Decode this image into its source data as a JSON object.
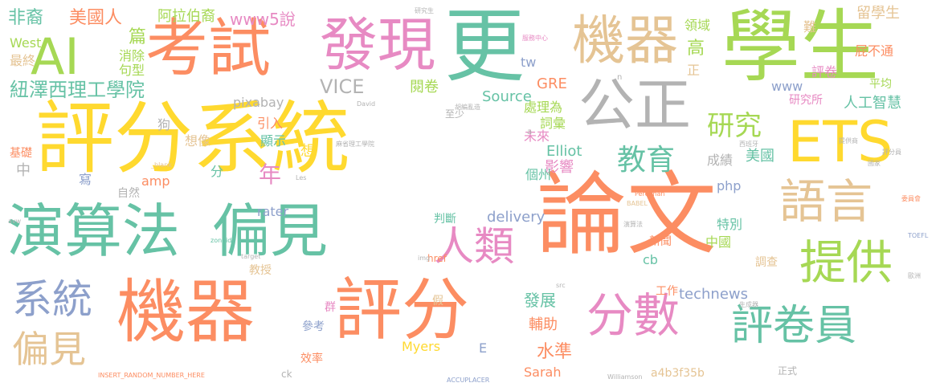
{
  "palette": {
    "green": "#66c2a5",
    "orange": "#fc8d62",
    "blue": "#8da0cb",
    "pink": "#e78ac3",
    "lime": "#a6d854",
    "yellow": "#ffd92f",
    "tan": "#e5c494",
    "gray": "#b3b3b3"
  },
  "words": [
    {
      "text": "評分系統",
      "color": "#ffd92f"
    },
    {
      "text": "論文",
      "color": "#fc8d62"
    },
    {
      "text": "學生",
      "color": "#a6d854"
    },
    {
      "text": "更",
      "color": "#66c2a5"
    },
    {
      "text": "考試",
      "color": "#fc8d62"
    },
    {
      "text": "發現",
      "color": "#e78ac3"
    },
    {
      "text": "機器",
      "color": "#e5c494"
    },
    {
      "text": "AI",
      "color": "#a6d854"
    },
    {
      "text": "公正",
      "color": "#b3b3b3"
    },
    {
      "text": "ETS",
      "color": "#ffd92f"
    },
    {
      "text": "演算法",
      "color": "#66c2a5"
    },
    {
      "text": "偏見",
      "color": "#66c2a5"
    },
    {
      "text": "機器",
      "color": "#fc8d62"
    },
    {
      "text": "評分",
      "color": "#fc8d62"
    },
    {
      "text": "語言",
      "color": "#e5c494"
    },
    {
      "text": "提供",
      "color": "#a6d854"
    },
    {
      "text": "分數",
      "color": "#e78ac3"
    },
    {
      "text": "評卷員",
      "color": "#66c2a5"
    },
    {
      "text": "人類",
      "color": "#e78ac3"
    },
    {
      "text": "系統",
      "color": "#8da0cb"
    },
    {
      "text": "偏見",
      "color": "#e5c494"
    },
    {
      "text": "教育",
      "color": "#66c2a5"
    },
    {
      "text": "研究",
      "color": "#a6d854"
    },
    {
      "text": "紐澤西理工學院",
      "color": "#66c2a5"
    },
    {
      "text": "非裔",
      "color": "#66c2a5"
    },
    {
      "text": "美國人",
      "color": "#fc8d62"
    },
    {
      "text": "阿拉伯裔",
      "color": "#a6d854"
    },
    {
      "text": "www5說",
      "color": "#e78ac3"
    },
    {
      "text": "篇",
      "color": "#a6d854"
    },
    {
      "text": "消除",
      "color": "#a6d854"
    },
    {
      "text": "句型",
      "color": "#a6d854"
    },
    {
      "text": "最終",
      "color": "#e5c494"
    },
    {
      "text": "West",
      "color": "#a6d854"
    },
    {
      "text": "VICE",
      "color": "#b3b3b3"
    },
    {
      "text": "閱卷",
      "color": "#a6d854"
    },
    {
      "text": "Source",
      "color": "#66c2a5"
    },
    {
      "text": "GRE",
      "color": "#fc8d62"
    },
    {
      "text": "tw",
      "color": "#8da0cb"
    },
    {
      "text": "領域",
      "color": "#a6d854"
    },
    {
      "text": "高",
      "color": "#a6d854"
    },
    {
      "text": "正",
      "color": "#e5c494"
    },
    {
      "text": "難",
      "color": "#e5c494"
    },
    {
      "text": "留學生",
      "color": "#e5c494"
    },
    {
      "text": "屁不通",
      "color": "#fc8d62"
    },
    {
      "text": "評卷",
      "color": "#e78ac3"
    },
    {
      "text": "平均",
      "color": "#a6d854"
    },
    {
      "text": "研究所",
      "color": "#e78ac3"
    },
    {
      "text": "人工智慧",
      "color": "#66c2a5"
    },
    {
      "text": "www",
      "color": "#8da0cb"
    },
    {
      "text": "pixabay",
      "color": "#b3b3b3"
    },
    {
      "text": "處理為",
      "color": "#a6d854"
    },
    {
      "text": "詞彙",
      "color": "#a6d854"
    },
    {
      "text": "至少",
      "color": "#b3b3b3"
    },
    {
      "text": "狗",
      "color": "#b3b3b3"
    },
    {
      "text": "引入",
      "color": "#fc8d62"
    },
    {
      "text": "顯示",
      "color": "#66c2a5"
    },
    {
      "text": "未來",
      "color": "#e78ac3"
    },
    {
      "text": "想",
      "color": "#ffd92f"
    },
    {
      "text": "Elliot",
      "color": "#66c2a5"
    },
    {
      "text": "想像",
      "color": "#e5c494"
    },
    {
      "text": "年",
      "color": "#e78ac3"
    },
    {
      "text": "影響",
      "color": "#e78ac3"
    },
    {
      "text": "成績",
      "color": "#b3b3b3"
    },
    {
      "text": "美國",
      "color": "#66c2a5"
    },
    {
      "text": "基礎",
      "color": "#fc8d62"
    },
    {
      "text": "中",
      "color": "#b3b3b3"
    },
    {
      "text": "寫",
      "color": "#8da0cb"
    },
    {
      "text": "分",
      "color": "#66c2a5"
    },
    {
      "text": "amp",
      "color": "#fc8d62"
    },
    {
      "text": "自然",
      "color": "#b3b3b3"
    },
    {
      "text": "個州",
      "color": "#66c2a5"
    },
    {
      "text": "php",
      "color": "#8da0cb"
    },
    {
      "text": "rater",
      "color": "#8da0cb"
    },
    {
      "text": "判斷",
      "color": "#66c2a5"
    },
    {
      "text": "delivery",
      "color": "#8da0cb"
    },
    {
      "text": "特別",
      "color": "#66c2a5"
    },
    {
      "text": "中國",
      "color": "#a6d854"
    },
    {
      "text": "新聞",
      "color": "#fc8d62"
    },
    {
      "text": "cb",
      "color": "#66c2a5"
    },
    {
      "text": "教授",
      "color": "#e5c494"
    },
    {
      "text": "調查",
      "color": "#e5c494"
    },
    {
      "text": "參考",
      "color": "#8da0cb"
    },
    {
      "text": "群",
      "color": "#e78ac3"
    },
    {
      "text": "發展",
      "color": "#66c2a5"
    },
    {
      "text": "輔助",
      "color": "#fc8d62"
    },
    {
      "text": "工作",
      "color": "#fc8d62"
    },
    {
      "text": "technews",
      "color": "#8da0cb"
    },
    {
      "text": "水準",
      "color": "#fc8d62"
    },
    {
      "text": "假",
      "color": "#e5c494"
    },
    {
      "text": "Myers",
      "color": "#ffd92f"
    },
    {
      "text": "E",
      "color": "#8da0cb"
    },
    {
      "text": "Sarah",
      "color": "#fc8d62"
    },
    {
      "text": "效率",
      "color": "#fc8d62"
    },
    {
      "text": "ck",
      "color": "#b3b3b3"
    },
    {
      "text": "a4b3f35b",
      "color": "#e5c494"
    },
    {
      "text": "正式",
      "color": "#b3b3b3"
    },
    {
      "text": "href",
      "color": "#fc8d62"
    },
    {
      "text": "INSERT_RANDOM_NUMBER_HERE",
      "color": "#fc8d62"
    },
    {
      "text": "ACCUPLACER",
      "color": "#8da0cb"
    },
    {
      "text": "Williamson",
      "color": "#b3b3b3"
    },
    {
      "text": "BABEL",
      "color": "#e5c494"
    },
    {
      "text": "Perelman",
      "color": "#fc8d62"
    },
    {
      "text": "TOEFL",
      "color": "#8da0cb"
    },
    {
      "text": "zoneid",
      "color": "#66c2a5"
    },
    {
      "text": "target",
      "color": "#b3b3b3"
    },
    {
      "text": "_blank",
      "color": "#e5c494"
    },
    {
      "text": "David",
      "color": "#b3b3b3"
    },
    {
      "text": "img",
      "color": "#b3b3b3"
    },
    {
      "text": "src",
      "color": "#b3b3b3"
    },
    {
      "text": "Les",
      "color": "#b3b3b3"
    },
    {
      "text": "avw",
      "color": "#b3b3b3"
    },
    {
      "text": "n",
      "color": "#b3b3b3"
    },
    {
      "text": "a",
      "color": "#b3b3b3"
    },
    {
      "text": "研究生",
      "color": "#b3b3b3"
    },
    {
      "text": "服務中心",
      "color": "#e78ac3"
    },
    {
      "text": "麻省理工學院",
      "color": "#b3b3b3"
    },
    {
      "text": "西班牙",
      "color": "#b3b3b3"
    },
    {
      "text": "生成器",
      "color": "#b3b3b3"
    },
    {
      "text": "委員會",
      "color": "#fc8d62"
    },
    {
      "text": "評分員",
      "color": "#b3b3b3"
    },
    {
      "text": "演算法",
      "color": "#b3b3b3"
    },
    {
      "text": "胡編亂造",
      "color": "#b3b3b3"
    },
    {
      "text": "提供商",
      "color": "#b3b3b3"
    },
    {
      "text": "國家",
      "color": "#b3b3b3"
    },
    {
      "text": "歐洲",
      "color": "#b3b3b3"
    }
  ]
}
